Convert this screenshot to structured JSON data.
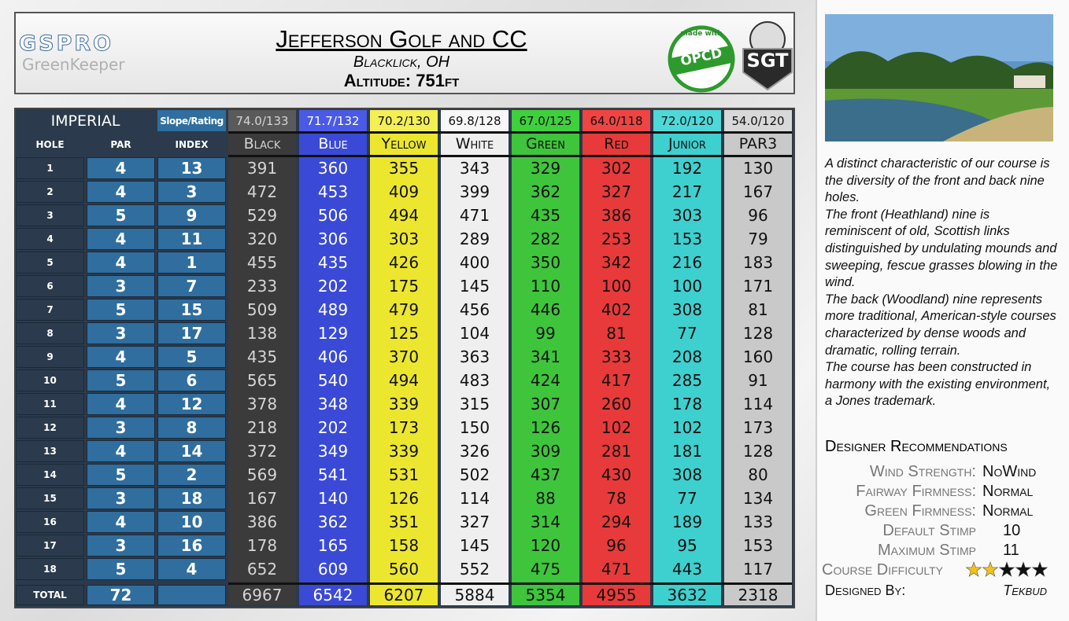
{
  "header": {
    "logo_main": "GSPRO",
    "logo_sub": "GreenKeeper",
    "title": "Jefferson Golf and CC",
    "location": "Blacklick, OH",
    "altitude": "Altitude: 751ft",
    "badge_opcd_top": "made with",
    "badge_opcd": "OPCD",
    "badge_sgt": "SGT"
  },
  "table": {
    "system": "Imperial",
    "slope_label": "Slope/Rating",
    "columns": [
      "HOLE",
      "PAR",
      "INDEX"
    ],
    "tees": [
      {
        "name": "Black",
        "rating": "74.0/133",
        "color": "#3b3b3b",
        "head_color": "#5a5a5a",
        "text_color": "#d4d4d4"
      },
      {
        "name": "Blue",
        "rating": "71.7/132",
        "color": "#3a4ad6",
        "head_color": "#4a5ae6",
        "text_color": "#ffffff"
      },
      {
        "name": "Yellow",
        "rating": "70.2/130",
        "color": "#ece72e",
        "head_color": "#f3ef55",
        "text_color": "#111111"
      },
      {
        "name": "White",
        "rating": "69.8/128",
        "color": "#efefef",
        "head_color": "#f7f7f7",
        "text_color": "#111111"
      },
      {
        "name": "Green",
        "rating": "67.0/125",
        "color": "#3ec53c",
        "head_color": "#3fd03d",
        "text_color": "#111111"
      },
      {
        "name": "Red",
        "rating": "64.0/118",
        "color": "#e83a3a",
        "head_color": "#f04444",
        "text_color": "#111111"
      },
      {
        "name": "Junior",
        "rating": "72.0/120",
        "color": "#3ed0cf",
        "head_color": "#4fd8d8",
        "text_color": "#111111"
      },
      {
        "name": "PAR3",
        "rating": "54.0/120",
        "color": "#c9c9c9",
        "head_color": "#d8d8d8",
        "text_color": "#111111"
      }
    ],
    "rows": [
      {
        "hole": 1,
        "par": 4,
        "index": 13,
        "yards": [
          391,
          360,
          355,
          343,
          329,
          302,
          192,
          130
        ]
      },
      {
        "hole": 2,
        "par": 4,
        "index": 3,
        "yards": [
          472,
          453,
          409,
          399,
          362,
          327,
          217,
          167
        ]
      },
      {
        "hole": 3,
        "par": 5,
        "index": 9,
        "yards": [
          529,
          506,
          494,
          471,
          435,
          386,
          303,
          96
        ]
      },
      {
        "hole": 4,
        "par": 4,
        "index": 11,
        "yards": [
          320,
          306,
          303,
          289,
          282,
          253,
          153,
          79
        ]
      },
      {
        "hole": 5,
        "par": 4,
        "index": 1,
        "yards": [
          455,
          435,
          426,
          400,
          350,
          342,
          216,
          183
        ]
      },
      {
        "hole": 6,
        "par": 3,
        "index": 7,
        "yards": [
          233,
          202,
          175,
          145,
          110,
          100,
          100,
          171
        ]
      },
      {
        "hole": 7,
        "par": 5,
        "index": 15,
        "yards": [
          509,
          489,
          479,
          456,
          446,
          402,
          308,
          81
        ]
      },
      {
        "hole": 8,
        "par": 3,
        "index": 17,
        "yards": [
          138,
          129,
          125,
          104,
          99,
          81,
          77,
          128
        ]
      },
      {
        "hole": 9,
        "par": 4,
        "index": 5,
        "yards": [
          435,
          406,
          370,
          363,
          341,
          333,
          208,
          160
        ]
      },
      {
        "hole": 10,
        "par": 5,
        "index": 6,
        "yards": [
          565,
          540,
          494,
          483,
          424,
          417,
          285,
          91
        ]
      },
      {
        "hole": 11,
        "par": 4,
        "index": 12,
        "yards": [
          378,
          348,
          339,
          315,
          307,
          260,
          178,
          114
        ]
      },
      {
        "hole": 12,
        "par": 3,
        "index": 8,
        "yards": [
          218,
          202,
          173,
          150,
          126,
          102,
          102,
          173
        ]
      },
      {
        "hole": 13,
        "par": 4,
        "index": 14,
        "yards": [
          372,
          349,
          339,
          326,
          309,
          281,
          181,
          128
        ]
      },
      {
        "hole": 14,
        "par": 5,
        "index": 2,
        "yards": [
          569,
          541,
          531,
          502,
          437,
          430,
          308,
          80
        ]
      },
      {
        "hole": 15,
        "par": 3,
        "index": 18,
        "yards": [
          167,
          140,
          126,
          114,
          88,
          78,
          77,
          134
        ]
      },
      {
        "hole": 16,
        "par": 4,
        "index": 10,
        "yards": [
          386,
          362,
          351,
          327,
          314,
          294,
          189,
          133
        ]
      },
      {
        "hole": 17,
        "par": 3,
        "index": 16,
        "yards": [
          178,
          165,
          158,
          145,
          120,
          96,
          95,
          153
        ]
      },
      {
        "hole": 18,
        "par": 5,
        "index": 4,
        "yards": [
          652,
          609,
          560,
          552,
          475,
          471,
          443,
          117
        ]
      }
    ],
    "total": {
      "label": "TOTAL",
      "par": 72,
      "yards": [
        6967,
        6542,
        6207,
        5884,
        5354,
        4955,
        3632,
        2318
      ]
    }
  },
  "description": [
    "A distinct characteristic of our course is the diversity of the front and back nine holes.",
    "The front (Heathland) nine is reminiscent of old, Scottish links distinguished by undulating mounds and sweeping, fescue grasses blowing in the wind.",
    "The back (Woodland) nine represents more traditional, American-style courses characterized by dense woods and dramatic, rolling terrain.",
    "The course has been constructed in harmony with the existing environment, a Jones trademark."
  ],
  "recommendations": {
    "title": "Designer Recommendations",
    "items": [
      {
        "label": "Wind Strength:",
        "value": "NoWind"
      },
      {
        "label": "Fairway Firmness:",
        "value": "Normal"
      },
      {
        "label": "Green Firmness:",
        "value": "Normal"
      },
      {
        "label": "Default Stimp",
        "value": 10
      },
      {
        "label": "Maximum Stimp",
        "value": 11
      }
    ],
    "difficulty": {
      "label": "Course Difficulty",
      "stars": 2,
      "max": 5
    },
    "designer": {
      "label": "Designed By:",
      "value": "Tekbud"
    }
  }
}
